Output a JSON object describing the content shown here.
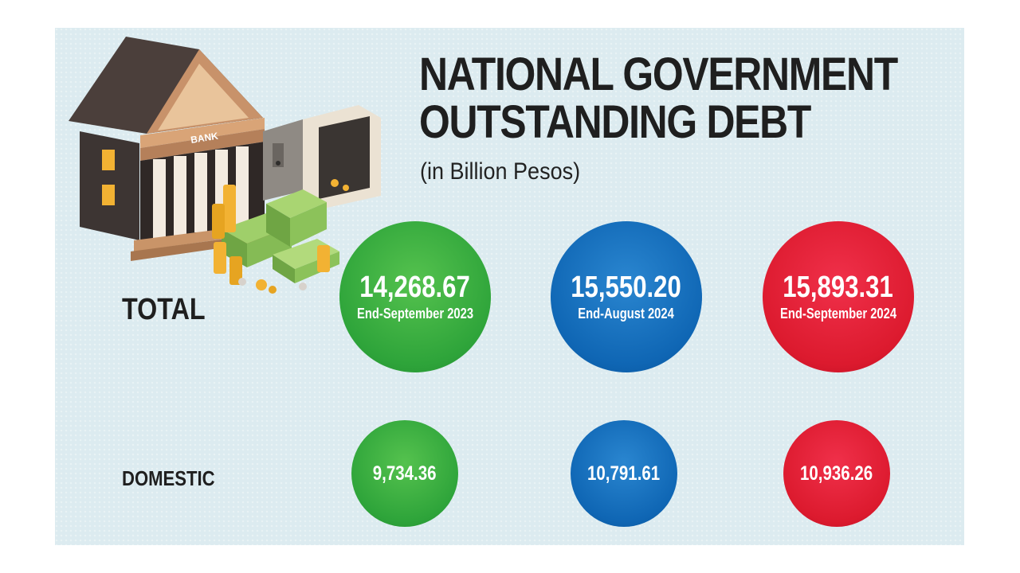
{
  "header": {
    "title_line1": "NATIONAL GOVERNMENT",
    "title_line2": "OUTSTANDING DEBT",
    "subtitle": "(in Billion Pesos)"
  },
  "illustration": {
    "bank_sign": "BANK",
    "icons": [
      "bank-building-icon",
      "open-safe-icon",
      "money-stacks-icon",
      "coins-icon"
    ]
  },
  "colors": {
    "background": "#dcebf0",
    "green": "#2ea43a",
    "blue": "#0f66b4",
    "red": "#dc1a2e",
    "text": "#1f1f1f"
  },
  "chart_data": {
    "type": "table",
    "title": "NATIONAL GOVERNMENT OUTSTANDING DEBT",
    "subtitle": "(in Billion Pesos)",
    "periods": [
      "End-September 2023",
      "End-August 2024",
      "End-September 2024"
    ],
    "rows": [
      {
        "label": "TOTAL",
        "values": [
          "14,268.67",
          "15,550.20",
          "15,893.31"
        ]
      },
      {
        "label": "DOMESTIC",
        "values": [
          "9,734.36",
          "10,791.61",
          "10,936.26"
        ]
      }
    ]
  }
}
